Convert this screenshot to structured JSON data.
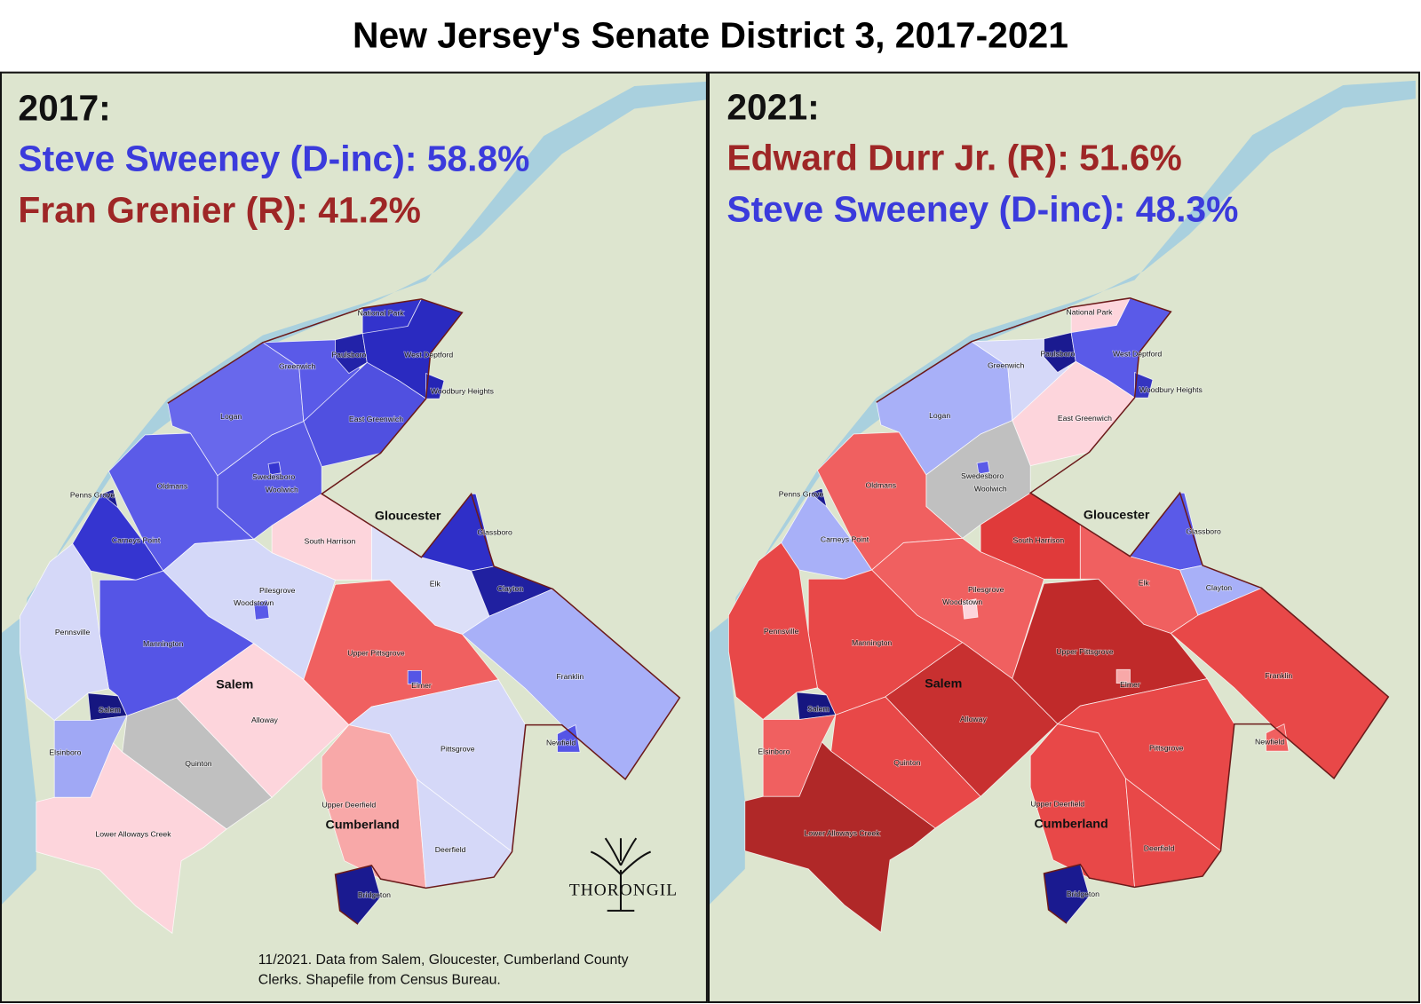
{
  "title": "New Jersey's Senate District 3, 2017-2021",
  "panels": [
    {
      "heading": "2017:",
      "lines": [
        {
          "text": "Steve Sweeney (D-inc): 58.8%",
          "color": "#3b3bdc"
        },
        {
          "text": "Fran Grenier (R): 41.2%",
          "color": "#9e2626"
        }
      ],
      "fills": [
        "#6868ec",
        "#5a5ae8",
        "#2222a8",
        "#3333cc",
        "#2a2ac0",
        "#2525b5",
        "#5050e0",
        "#5a5ae6",
        "#3535d0",
        "#5b5be8",
        "#1a1a90",
        "#3535d0",
        "#d4d8f8",
        "#5a5ae8",
        "#5555e6",
        "#fdd5dc",
        "#dcdff8",
        "#2f2fc8",
        "#2020a0",
        "#a8b0f8",
        "#f06060",
        "#161680",
        "#a0a8f5",
        "#d5d8f8",
        "#c0c0c0",
        "#fdd5dc",
        "#fdd5dc",
        "#d5d8f8",
        "#5555e6",
        "#5555e6",
        "#f8a8a8",
        "#d5d8f8",
        "#1a1a90"
      ]
    },
    {
      "heading": "2021:",
      "lines": [
        {
          "text": "Edward Durr Jr. (R): 51.6%",
          "color": "#9e2626"
        },
        {
          "text": "Steve Sweeney (D-inc): 48.3%",
          "color": "#3b3bdc"
        }
      ],
      "fills": [
        "#a8b0f8",
        "#d5d8f8",
        "#1a1a90",
        "#fdd5dc",
        "#5a5ae8",
        "#3535c0",
        "#fdd5dc",
        "#c0c0c0",
        "#5a5ae8",
        "#f06060",
        "#1a1a90",
        "#a8b0f8",
        "#f06060",
        "#fdd5dc",
        "#e84848",
        "#e03a3a",
        "#f06060",
        "#5a5ae8",
        "#a8b0f8",
        "#e84848",
        "#c02a2a",
        "#161680",
        "#f06060",
        "#e84848",
        "#e84848",
        "#c83030",
        "#b02828",
        "#e84848",
        "#f8a8a8",
        "#f06060",
        "#e84848",
        "#e84848",
        "#1a1a90"
      ]
    }
  ],
  "municipalities": [
    "Logan",
    "Greenwich",
    "Paulsboro",
    "National Park",
    "West Deptford",
    "Woodbury Heights",
    "East Greenwich",
    "Woolwich",
    "Swedesboro",
    "Oldmans",
    "Penns Grove",
    "Carneys Point",
    "Pilesgrove",
    "Woodstown",
    "Mannington",
    "South Harrison",
    "Elk",
    "Glassboro",
    "Clayton",
    "Franklin",
    "Upper Pittsgrove",
    "Salem",
    "Elsinboro",
    "Pennsville",
    "Quinton",
    "Alloway",
    "Lower Alloways Creek",
    "Pittsgrove",
    "Elmer",
    "Newfield",
    "Upper Deerfield",
    "Deerfield",
    "Bridgeton"
  ],
  "counties": [
    "Gloucester",
    "Salem",
    "Cumberland"
  ],
  "footnote": [
    "11/2021. Data from Salem, Gloucester, Cumberland County",
    "Clerks. Shapefile from Census Bureau."
  ],
  "logo": "THORONGIL"
}
